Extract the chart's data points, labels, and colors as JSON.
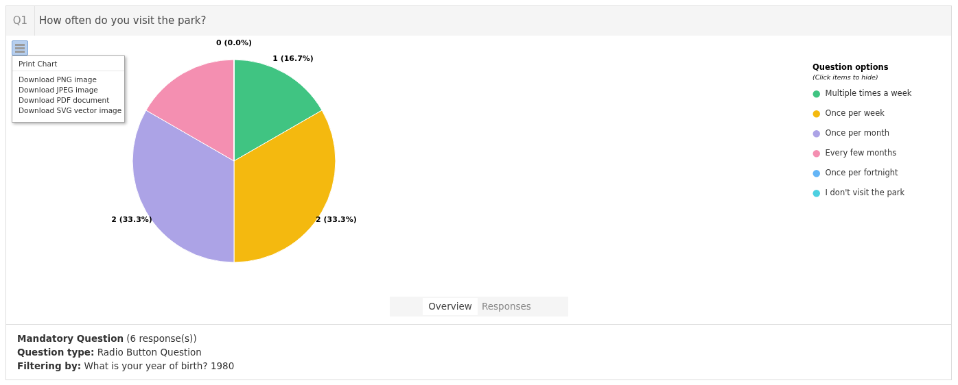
{
  "chart_data": {
    "type": "pie",
    "title": "How often do you visit the park?",
    "legend_title": "Question options",
    "legend": "top right",
    "categories": [
      "Multiple times a week",
      "Once per week",
      "Once per month",
      "Every few months",
      "Once per fortnight",
      "I don't visit the park"
    ],
    "values": [
      1,
      2,
      2,
      1,
      0,
      0
    ],
    "colors": [
      "#40c482",
      "#f4b90f",
      "#aca3e6",
      "#f48fb1",
      "#64b5f6",
      "#4dd0e1"
    ],
    "value_labels": [
      "1 (16.7%)",
      "2 (33.3%)",
      "2 (33.3%)",
      null,
      null,
      "0 (0.0%)"
    ],
    "annotations": [
      "Q1",
      "(Click items to hide)",
      "Print Chart",
      "Download PNG image",
      "Download JPEG image",
      "Download PDF document",
      "Download SVG vector image",
      "Overview",
      "Responses",
      "Mandatory Question",
      "(6 response(s))",
      "Question type:",
      "Radio Button Question",
      "Filtering by:",
      "What is your year of birth? 1980"
    ]
  }
}
